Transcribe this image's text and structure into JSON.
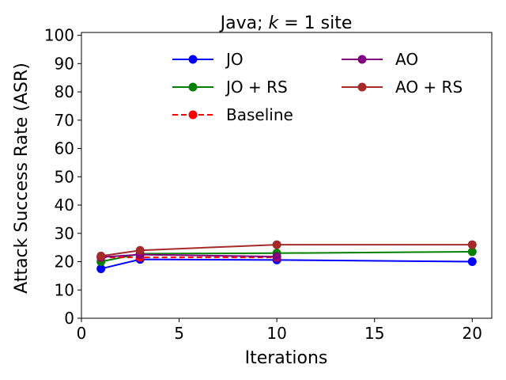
{
  "chart_data": {
    "type": "line",
    "title_prefix": "Java; ",
    "title_k": "k",
    "title_suffix": " = 1 site",
    "xlabel": "Iterations",
    "ylabel": "Attack Success Rate (ASR)",
    "xlim": [
      0,
      21
    ],
    "ylim": [
      0,
      101
    ],
    "xticks": [
      0,
      5,
      10,
      15,
      20
    ],
    "yticks": [
      0,
      10,
      20,
      30,
      40,
      50,
      60,
      70,
      80,
      90,
      100
    ],
    "grid": false,
    "legend_position": "top-right",
    "series": [
      {
        "name": "JO",
        "color": "#0000ff",
        "dashed": false,
        "x": [
          1,
          3,
          10,
          20
        ],
        "y": [
          17.5,
          20.8,
          20.6,
          20.0
        ]
      },
      {
        "name": "JO + RS",
        "color": "#008000",
        "dashed": false,
        "x": [
          1,
          3,
          10,
          20
        ],
        "y": [
          20.0,
          22.8,
          23.0,
          23.5
        ]
      },
      {
        "name": "Baseline",
        "color": "#ff0000",
        "dashed": true,
        "x": [
          1,
          3,
          10
        ],
        "y": [
          21.5,
          21.5,
          21.5
        ]
      },
      {
        "name": "AO",
        "color": "#800080",
        "dashed": false,
        "x": [
          1,
          3,
          10
        ],
        "y": [
          21.6,
          22.5,
          21.8
        ]
      },
      {
        "name": "AO + RS",
        "color": "#a52a2a",
        "dashed": false,
        "x": [
          1,
          3,
          10,
          20
        ],
        "y": [
          22.0,
          24.0,
          26.0,
          26.0
        ]
      }
    ]
  }
}
